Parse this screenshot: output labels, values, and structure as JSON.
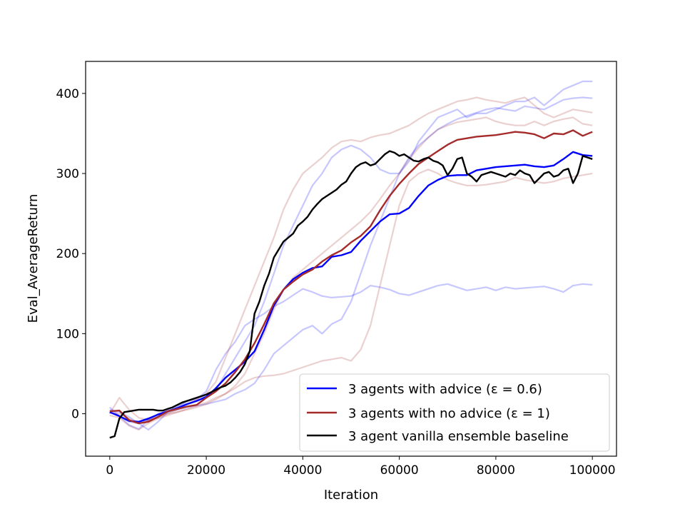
{
  "chart_data": {
    "type": "line",
    "xlabel": "Iteration",
    "ylabel": "Eval_AverageReturn",
    "xlim": [
      -5000,
      105000
    ],
    "ylim": [
      -53,
      440
    ],
    "xticks": [
      0,
      20000,
      40000,
      60000,
      80000,
      100000
    ],
    "yticks": [
      0,
      100,
      200,
      300,
      400
    ],
    "legend_position": "lower right",
    "series": [
      {
        "name": "3 agents with advice (ε = 0.6)",
        "color": "#0000ff",
        "x": [
          0,
          2000,
          4000,
          6000,
          8000,
          10000,
          12000,
          14000,
          16000,
          18000,
          20000,
          22000,
          24000,
          26000,
          28000,
          30000,
          32000,
          34000,
          36000,
          38000,
          40000,
          42000,
          44000,
          46000,
          48000,
          50000,
          52000,
          54000,
          56000,
          58000,
          60000,
          62000,
          64000,
          66000,
          68000,
          70000,
          72000,
          74000,
          76000,
          78000,
          80000,
          82000,
          84000,
          86000,
          88000,
          90000,
          92000,
          94000,
          96000,
          98000,
          100000
        ],
        "y": [
          2,
          -3,
          -9,
          -10,
          -6,
          -1,
          3,
          7,
          12,
          16,
          21,
          32,
          45,
          55,
          65,
          78,
          105,
          135,
          155,
          168,
          176,
          182,
          184,
          196,
          198,
          202,
          216,
          228,
          240,
          249,
          250,
          257,
          272,
          285,
          292,
          297,
          298,
          298,
          304,
          306,
          308,
          309,
          310,
          311,
          309,
          308,
          310,
          318,
          327,
          323,
          322
        ]
      },
      {
        "name": "3 agents with no advice (ε = 1)",
        "color": "#a52a2a",
        "x": [
          0,
          2000,
          4000,
          6000,
          8000,
          10000,
          12000,
          14000,
          16000,
          18000,
          20000,
          22000,
          24000,
          26000,
          28000,
          30000,
          32000,
          34000,
          36000,
          38000,
          40000,
          42000,
          44000,
          46000,
          48000,
          50000,
          52000,
          54000,
          56000,
          58000,
          60000,
          62000,
          64000,
          66000,
          68000,
          70000,
          72000,
          74000,
          76000,
          78000,
          80000,
          82000,
          84000,
          86000,
          88000,
          90000,
          92000,
          94000,
          96000,
          98000,
          100000
        ],
        "y": [
          3,
          4,
          -8,
          -12,
          -10,
          -4,
          3,
          6,
          9,
          11,
          20,
          28,
          38,
          52,
          68,
          88,
          112,
          138,
          155,
          165,
          174,
          180,
          190,
          198,
          204,
          214,
          222,
          234,
          254,
          272,
          287,
          300,
          312,
          320,
          328,
          336,
          342,
          344,
          346,
          347,
          348,
          350,
          352,
          351,
          349,
          344,
          350,
          349,
          354,
          347,
          352
        ]
      },
      {
        "name": "3 agent vanilla ensemble baseline",
        "color": "#000000",
        "x": [
          0,
          1000,
          2000,
          3000,
          4000,
          5000,
          6000,
          7000,
          8000,
          9000,
          10000,
          11000,
          12000,
          13000,
          14000,
          15000,
          16000,
          17000,
          18000,
          19000,
          20000,
          21000,
          22000,
          23000,
          24000,
          25000,
          26000,
          27000,
          28000,
          29000,
          30000,
          31000,
          32000,
          33000,
          34000,
          35000,
          36000,
          37000,
          38000,
          39000,
          40000,
          41000,
          42000,
          43000,
          44000,
          45000,
          46000,
          47000,
          48000,
          49000,
          50000,
          51000,
          52000,
          53000,
          54000,
          55000,
          56000,
          57000,
          58000,
          59000,
          60000,
          61000,
          62000,
          63000,
          64000,
          65000,
          66000,
          67000,
          68000,
          69000,
          70000,
          71000,
          72000,
          73000,
          74000,
          75000,
          76000,
          77000,
          78000,
          79000,
          80000,
          81000,
          82000,
          83000,
          84000,
          85000,
          86000,
          87000,
          88000,
          89000,
          90000,
          91000,
          92000,
          93000,
          94000,
          95000,
          96000,
          97000,
          98000,
          99000,
          100000
        ],
        "y": [
          -30,
          -28,
          -6,
          2,
          3,
          4,
          5,
          5,
          5,
          5,
          4,
          4,
          6,
          8,
          11,
          14,
          16,
          18,
          20,
          22,
          24,
          27,
          30,
          33,
          35,
          39,
          45,
          52,
          62,
          78,
          125,
          140,
          160,
          175,
          195,
          205,
          215,
          220,
          225,
          235,
          240,
          246,
          255,
          262,
          268,
          272,
          276,
          280,
          286,
          290,
          300,
          308,
          312,
          314,
          310,
          312,
          318,
          324,
          328,
          326,
          322,
          324,
          320,
          316,
          315,
          318,
          320,
          316,
          314,
          310,
          298,
          306,
          318,
          320,
          300,
          296,
          290,
          298,
          300,
          302,
          300,
          298,
          296,
          300,
          298,
          304,
          300,
          298,
          288,
          294,
          300,
          302,
          296,
          298,
          304,
          306,
          288,
          300,
          322,
          320,
          318
        ]
      },
      {
        "name": "",
        "color": "#0000ff",
        "faint": true,
        "x": [
          0,
          2000,
          4000,
          6000,
          8000,
          10000,
          12000,
          14000,
          16000,
          18000,
          20000,
          22000,
          24000,
          26000,
          28000,
          30000,
          32000,
          34000,
          36000,
          38000,
          40000,
          42000,
          44000,
          46000,
          48000,
          50000,
          52000,
          54000,
          56000,
          58000,
          60000,
          62000,
          64000,
          66000,
          68000,
          70000,
          72000,
          74000,
          76000,
          78000,
          80000,
          82000,
          84000,
          86000,
          88000,
          90000,
          92000,
          94000,
          96000,
          98000,
          100000
        ],
        "y": [
          8,
          -3,
          -14,
          -19,
          -8,
          0,
          4,
          9,
          16,
          18,
          28,
          55,
          75,
          90,
          110,
          118,
          125,
          134,
          140,
          148,
          156,
          152,
          147,
          145,
          146,
          147,
          152,
          160,
          158,
          155,
          150,
          148,
          152,
          156,
          160,
          162,
          158,
          154,
          156,
          158,
          154,
          158,
          156,
          157,
          158,
          159,
          156,
          152,
          160,
          162,
          161
        ]
      },
      {
        "name": "",
        "color": "#0000ff",
        "faint": true,
        "x": [
          0,
          2000,
          4000,
          6000,
          8000,
          10000,
          12000,
          14000,
          16000,
          18000,
          20000,
          22000,
          24000,
          26000,
          28000,
          30000,
          32000,
          34000,
          36000,
          38000,
          40000,
          42000,
          44000,
          46000,
          48000,
          50000,
          52000,
          54000,
          56000,
          58000,
          60000,
          62000,
          64000,
          66000,
          68000,
          70000,
          72000,
          74000,
          76000,
          78000,
          80000,
          82000,
          84000,
          86000,
          88000,
          90000,
          92000,
          94000,
          96000,
          98000,
          100000
        ],
        "y": [
          5,
          2,
          -4,
          -12,
          -20,
          -10,
          2,
          8,
          15,
          20,
          22,
          30,
          50,
          70,
          90,
          110,
          140,
          175,
          210,
          235,
          260,
          285,
          300,
          320,
          330,
          335,
          330,
          320,
          305,
          300,
          300,
          315,
          340,
          355,
          370,
          375,
          380,
          370,
          375,
          375,
          380,
          385,
          390,
          390,
          395,
          385,
          395,
          405,
          410,
          415,
          415
        ]
      },
      {
        "name": "",
        "color": "#0000ff",
        "faint": true,
        "x": [
          0,
          2000,
          4000,
          6000,
          8000,
          10000,
          12000,
          14000,
          16000,
          18000,
          20000,
          22000,
          24000,
          26000,
          28000,
          30000,
          32000,
          34000,
          36000,
          38000,
          40000,
          42000,
          44000,
          46000,
          48000,
          50000,
          52000,
          54000,
          56000,
          58000,
          60000,
          62000,
          64000,
          66000,
          68000,
          70000,
          72000,
          74000,
          76000,
          78000,
          80000,
          82000,
          84000,
          86000,
          88000,
          90000,
          92000,
          94000,
          96000,
          98000,
          100000
        ],
        "y": [
          2,
          -3,
          -10,
          -12,
          -8,
          -2,
          2,
          5,
          8,
          10,
          12,
          15,
          18,
          25,
          30,
          38,
          55,
          75,
          85,
          95,
          105,
          110,
          100,
          112,
          118,
          140,
          175,
          210,
          240,
          270,
          300,
          320,
          335,
          345,
          355,
          362,
          368,
          372,
          376,
          380,
          382,
          380,
          378,
          384,
          382,
          380,
          386,
          392,
          394,
          395,
          394
        ]
      },
      {
        "name": "",
        "color": "#a52a2a",
        "faint": true,
        "x": [
          0,
          2000,
          4000,
          6000,
          8000,
          10000,
          12000,
          14000,
          16000,
          18000,
          20000,
          22000,
          24000,
          26000,
          28000,
          30000,
          32000,
          34000,
          36000,
          38000,
          40000,
          42000,
          44000,
          46000,
          48000,
          50000,
          52000,
          54000,
          56000,
          58000,
          60000,
          62000,
          64000,
          66000,
          68000,
          70000,
          72000,
          74000,
          76000,
          78000,
          80000,
          82000,
          84000,
          86000,
          88000,
          90000,
          92000,
          94000,
          96000,
          98000,
          100000
        ],
        "y": [
          0,
          20,
          5,
          -5,
          -8,
          -5,
          0,
          5,
          12,
          18,
          25,
          40,
          70,
          100,
          130,
          160,
          190,
          220,
          255,
          280,
          300,
          310,
          320,
          332,
          340,
          342,
          340,
          345,
          348,
          350,
          355,
          360,
          368,
          375,
          380,
          385,
          390,
          392,
          395,
          392,
          390,
          388,
          392,
          395,
          385,
          375,
          370,
          375,
          380,
          378,
          376
        ]
      },
      {
        "name": "",
        "color": "#a52a2a",
        "faint": true,
        "x": [
          0,
          2000,
          4000,
          6000,
          8000,
          10000,
          12000,
          14000,
          16000,
          18000,
          20000,
          22000,
          24000,
          26000,
          28000,
          30000,
          32000,
          34000,
          36000,
          38000,
          40000,
          42000,
          44000,
          46000,
          48000,
          50000,
          52000,
          54000,
          56000,
          58000,
          60000,
          62000,
          64000,
          66000,
          68000,
          70000,
          72000,
          74000,
          76000,
          78000,
          80000,
          82000,
          84000,
          86000,
          88000,
          90000,
          92000,
          94000,
          96000,
          98000,
          100000
        ],
        "y": [
          -2,
          -5,
          -15,
          -20,
          -12,
          -6,
          -2,
          2,
          6,
          10,
          14,
          20,
          25,
          32,
          40,
          45,
          47,
          48,
          50,
          54,
          58,
          62,
          66,
          68,
          70,
          66,
          80,
          110,
          160,
          210,
          260,
          290,
          300,
          305,
          300,
          292,
          288,
          285,
          285,
          286,
          288,
          290,
          295,
          292,
          290,
          288,
          290,
          294,
          296,
          298,
          300
        ]
      },
      {
        "name": "",
        "color": "#a52a2a",
        "faint": true,
        "x": [
          0,
          2000,
          4000,
          6000,
          8000,
          10000,
          12000,
          14000,
          16000,
          18000,
          20000,
          22000,
          24000,
          26000,
          28000,
          30000,
          32000,
          34000,
          36000,
          38000,
          40000,
          42000,
          44000,
          46000,
          48000,
          50000,
          52000,
          54000,
          56000,
          58000,
          60000,
          62000,
          64000,
          66000,
          68000,
          70000,
          72000,
          74000,
          76000,
          78000,
          80000,
          82000,
          84000,
          86000,
          88000,
          90000,
          92000,
          94000,
          96000,
          98000,
          100000
        ],
        "y": [
          2,
          0,
          -6,
          -12,
          -8,
          -4,
          0,
          2,
          5,
          8,
          12,
          18,
          25,
          35,
          50,
          75,
          100,
          130,
          155,
          170,
          180,
          190,
          200,
          210,
          220,
          230,
          240,
          252,
          268,
          285,
          300,
          318,
          332,
          345,
          355,
          360,
          364,
          366,
          368,
          370,
          365,
          362,
          360,
          360,
          365,
          360,
          365,
          368,
          370,
          362,
          360
        ]
      }
    ]
  }
}
